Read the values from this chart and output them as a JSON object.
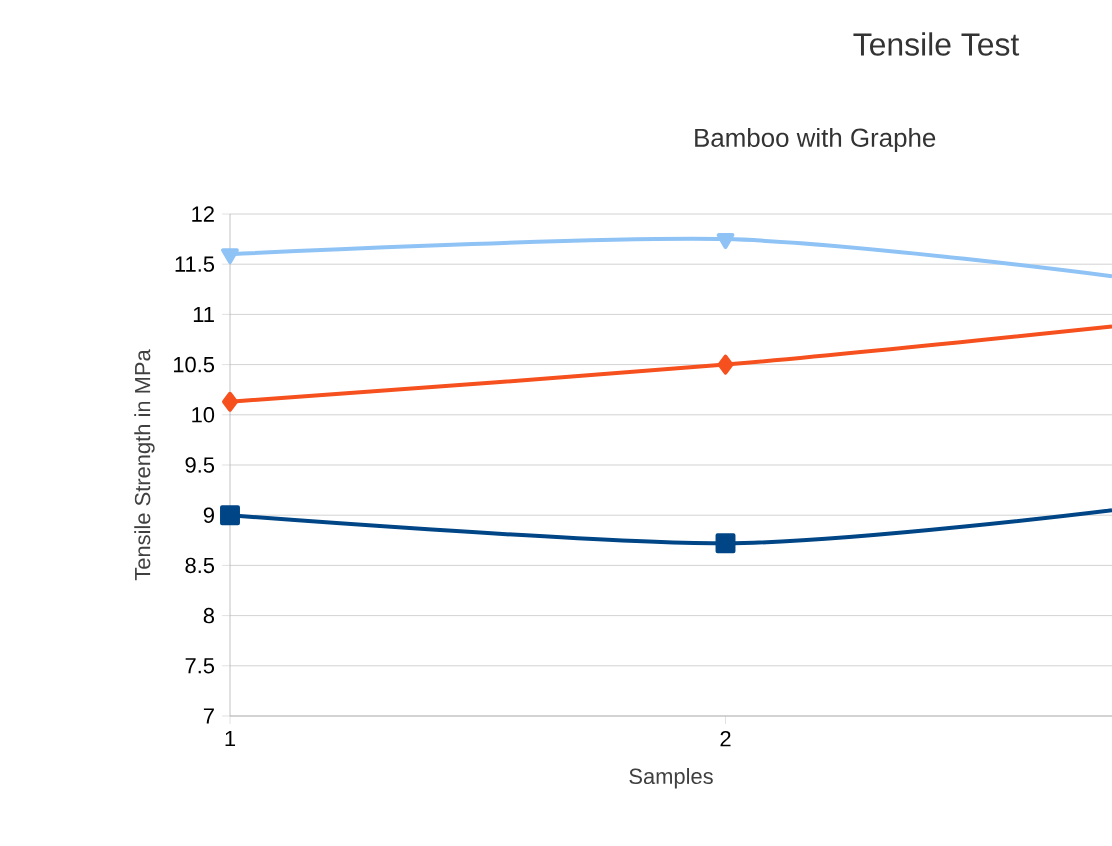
{
  "chart_data": {
    "type": "line",
    "title": "Tensile Test",
    "subtitle": "Bamboo with Graphe",
    "xlabel": "Samples",
    "ylabel": "Tensile Strength in MPa",
    "x": [
      1,
      2,
      2.78
    ],
    "series": [
      {
        "color": "#8fc3f5",
        "values": [
          11.6,
          11.75,
          11.38
        ],
        "marker": "triangle"
      },
      {
        "color": "#f5501e",
        "values": [
          10.13,
          10.5,
          10.88
        ],
        "marker": "diamond"
      },
      {
        "color": "#004586",
        "values": [
          9.0,
          8.72,
          9.05
        ],
        "marker": "square"
      }
    ],
    "xlim": [
      1,
      2.78
    ],
    "xticks": [
      1,
      2
    ],
    "ylim": [
      7,
      12
    ],
    "yticks": [
      7,
      7.5,
      8,
      8.5,
      9,
      9.5,
      10,
      10.5,
      11,
      11.5,
      12
    ],
    "grid": "y",
    "line_style": "solid"
  }
}
